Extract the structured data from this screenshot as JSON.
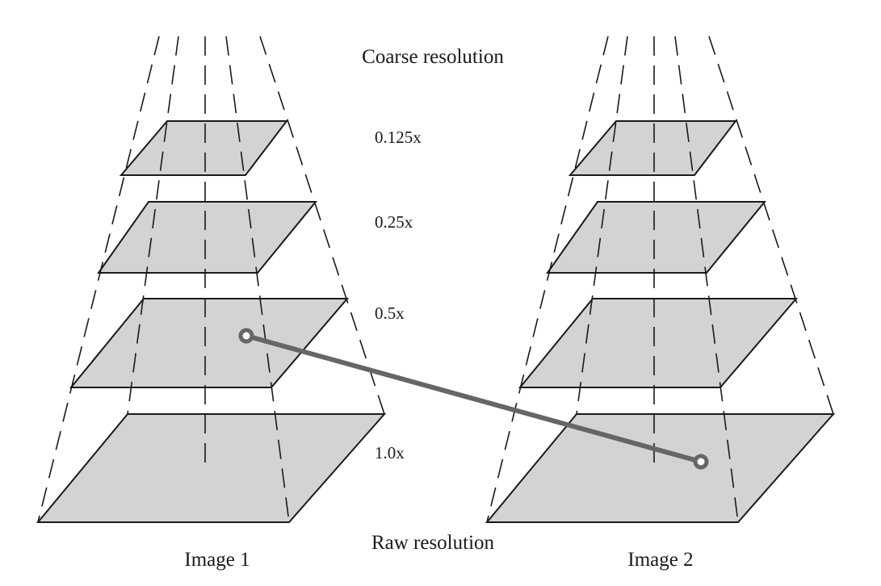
{
  "labels": {
    "top": "Coarse resolution",
    "bottom": "Raw resolution"
  },
  "levels": [
    {
      "scale": "0.125x"
    },
    {
      "scale": "0.25x"
    },
    {
      "scale": "0.5x"
    },
    {
      "scale": "1.0x"
    }
  ],
  "images": [
    {
      "name": "Image 1"
    },
    {
      "name": "Image 2"
    }
  ],
  "match": {
    "from": {
      "image": "Image 1",
      "level": "0.5x"
    },
    "to": {
      "image": "Image 2",
      "level": "1.0x"
    }
  },
  "colors": {
    "plane_fill": "#d3d3d3",
    "outline": "#1a1a1a",
    "match_line": "#666666"
  }
}
